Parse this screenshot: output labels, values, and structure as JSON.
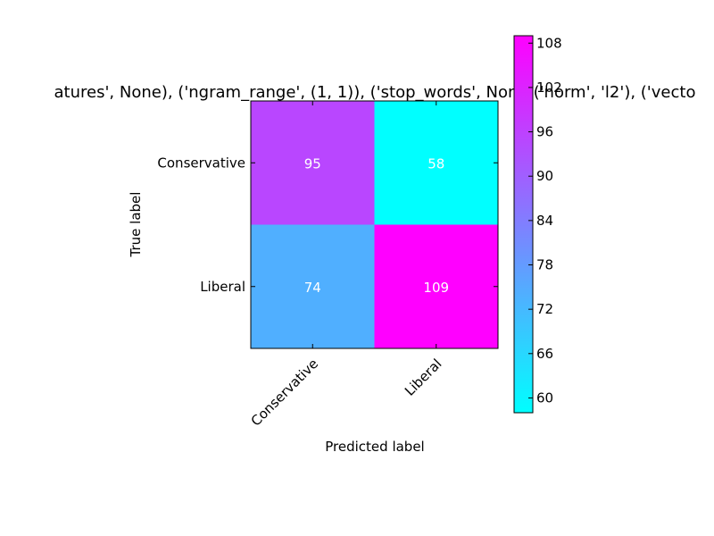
{
  "chart_data": {
    "type": "heatmap",
    "title": "atures', None), ('ngram_range', (1, 1)), ('stop_words', Non  , ('norm', 'l2'), ('vecto",
    "xlabel": "Predicted label",
    "ylabel": "True label",
    "x_categories": [
      "Conservative",
      "Liberal"
    ],
    "y_categories": [
      "Conservative",
      "Liberal"
    ],
    "values": [
      [
        95,
        58
      ],
      [
        74,
        109
      ]
    ],
    "cell_labels": [
      [
        "95",
        "58"
      ],
      [
        "74",
        "109"
      ]
    ],
    "colormap": "cool",
    "colormap_colors": [
      "#00ffff",
      "#ff00ff"
    ],
    "colorbar": {
      "range": [
        58,
        109
      ],
      "ticks": [
        60,
        66,
        72,
        78,
        84,
        90,
        96,
        102,
        108
      ],
      "tick_labels": [
        "60",
        "66",
        "72",
        "78",
        "84",
        "90",
        "96",
        "102",
        "108"
      ],
      "placement": "right"
    },
    "grid": false
  }
}
